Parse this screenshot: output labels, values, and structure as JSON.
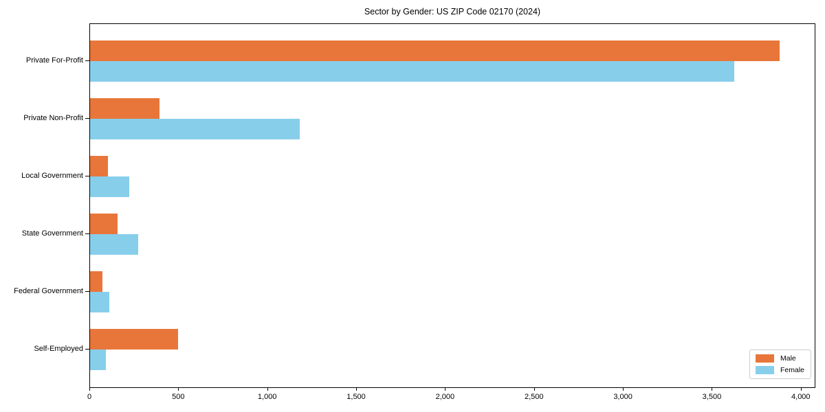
{
  "title": "Sector by Gender: US ZIP Code 02170 (2024)",
  "chart_data": {
    "type": "bar",
    "orientation": "horizontal",
    "title": "Sector by Gender: US ZIP Code 02170 (2024)",
    "xlabel": "",
    "ylabel": "",
    "categories": [
      "Private For-Profit",
      "Private Non-Profit",
      "Local Government",
      "State Government",
      "Federal Government",
      "Self-Employed"
    ],
    "series": [
      {
        "name": "Male",
        "color": "#e8763a",
        "values": [
          3885,
          390,
          100,
          155,
          70,
          495
        ]
      },
      {
        "name": "Female",
        "color": "#87ceeb",
        "values": [
          3630,
          1180,
          220,
          270,
          110,
          90
        ]
      }
    ],
    "xlim": [
      0,
      4082
    ],
    "x_ticks": [
      0,
      500,
      1000,
      1500,
      2000,
      2500,
      3000,
      3500,
      4000
    ],
    "x_tick_labels": [
      "0",
      "500",
      "1,000",
      "1,500",
      "2,000",
      "2,500",
      "3,000",
      "3,500",
      "4,000"
    ],
    "grid": false,
    "legend_position": "lower right"
  }
}
